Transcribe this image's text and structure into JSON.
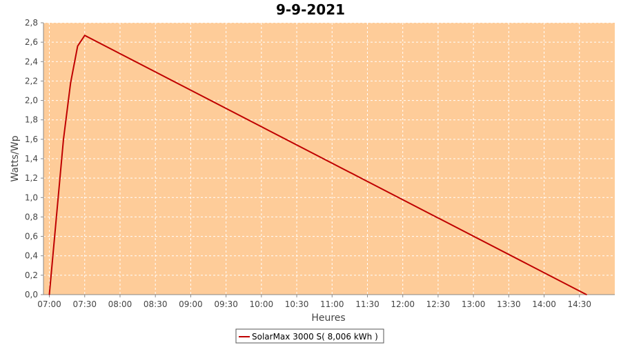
{
  "chart_data": {
    "type": "line",
    "title": "9-9-2021",
    "xlabel": "Heures",
    "ylabel": "Watts/Wp",
    "x_ticks": [
      "07:00",
      "07:30",
      "08:00",
      "08:30",
      "09:00",
      "09:30",
      "10:00",
      "10:30",
      "11:00",
      "11:30",
      "12:00",
      "12:30",
      "13:00",
      "13:30",
      "14:00",
      "14:30"
    ],
    "y_ticks": [
      "0,0",
      "0,2",
      "0,4",
      "0,6",
      "0,8",
      "1,0",
      "1,2",
      "1,4",
      "1,6",
      "1,8",
      "2,0",
      "2,2",
      "2,4",
      "2,6",
      "2,8"
    ],
    "xlim": [
      "06:55",
      "15:00"
    ],
    "ylim": [
      0,
      2.8
    ],
    "grid": true,
    "legend_position": "bottom-center",
    "colors": {
      "plot_background": "#fecc99",
      "series_line": "#bf0000",
      "grid": "#ffffff"
    },
    "series": [
      {
        "name": "SolarMax 3000 S( 8,006 kWh )",
        "points": [
          {
            "x": "07:00",
            "y": 0.0
          },
          {
            "x": "07:12",
            "y": 1.6
          },
          {
            "x": "07:18",
            "y": 2.18
          },
          {
            "x": "07:24",
            "y": 2.56
          },
          {
            "x": "07:30",
            "y": 2.67
          },
          {
            "x": "14:36",
            "y": 0.0
          }
        ]
      }
    ]
  }
}
